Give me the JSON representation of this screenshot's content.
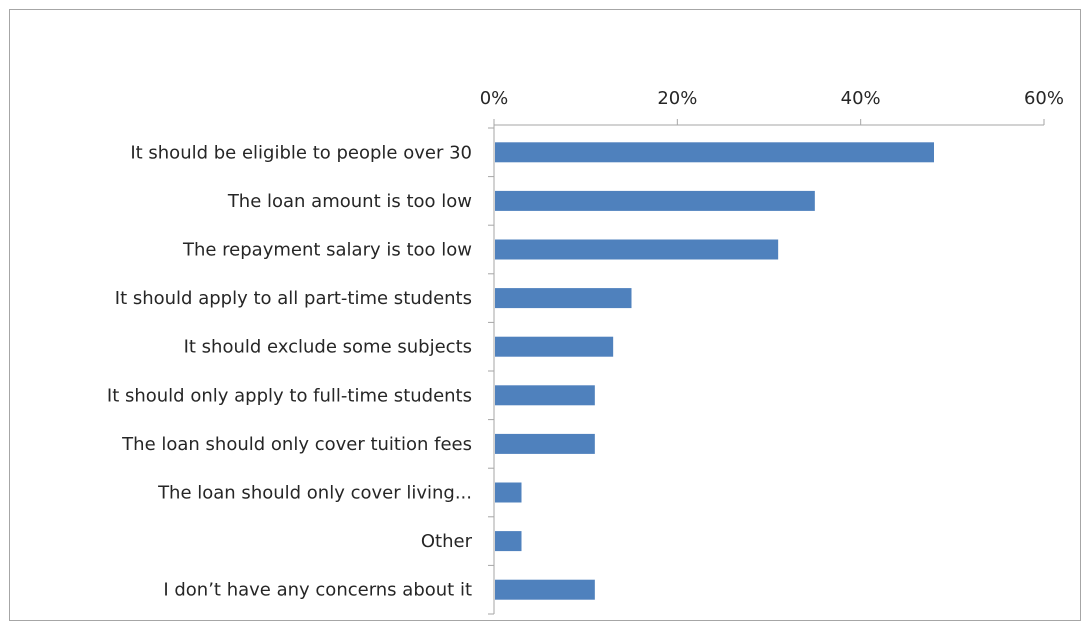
{
  "chart_data": {
    "type": "bar",
    "orientation": "horizontal",
    "categories": [
      "It should be eligible to people over 30",
      "The loan amount  is too low",
      "The repayment salary is too low",
      "It should apply to all part-time students",
      "It should exclude some subjects",
      "It should only apply to full-time students",
      "The loan should only cover tuition fees",
      "The loan should only cover living...",
      "Other",
      "I don’t have any concerns about it"
    ],
    "values": [
      48,
      35,
      31,
      15,
      13,
      11,
      11,
      3,
      3,
      11
    ],
    "xlim": [
      0,
      60
    ],
    "xticks": [
      0,
      20,
      40,
      60
    ],
    "tick_labels": [
      "0%",
      "20%",
      "40%",
      "60%"
    ],
    "x_axis_position": "top",
    "bar_color": "#4f81bd",
    "grid": false,
    "legend": false,
    "title": "",
    "xlabel": "",
    "ylabel": ""
  }
}
